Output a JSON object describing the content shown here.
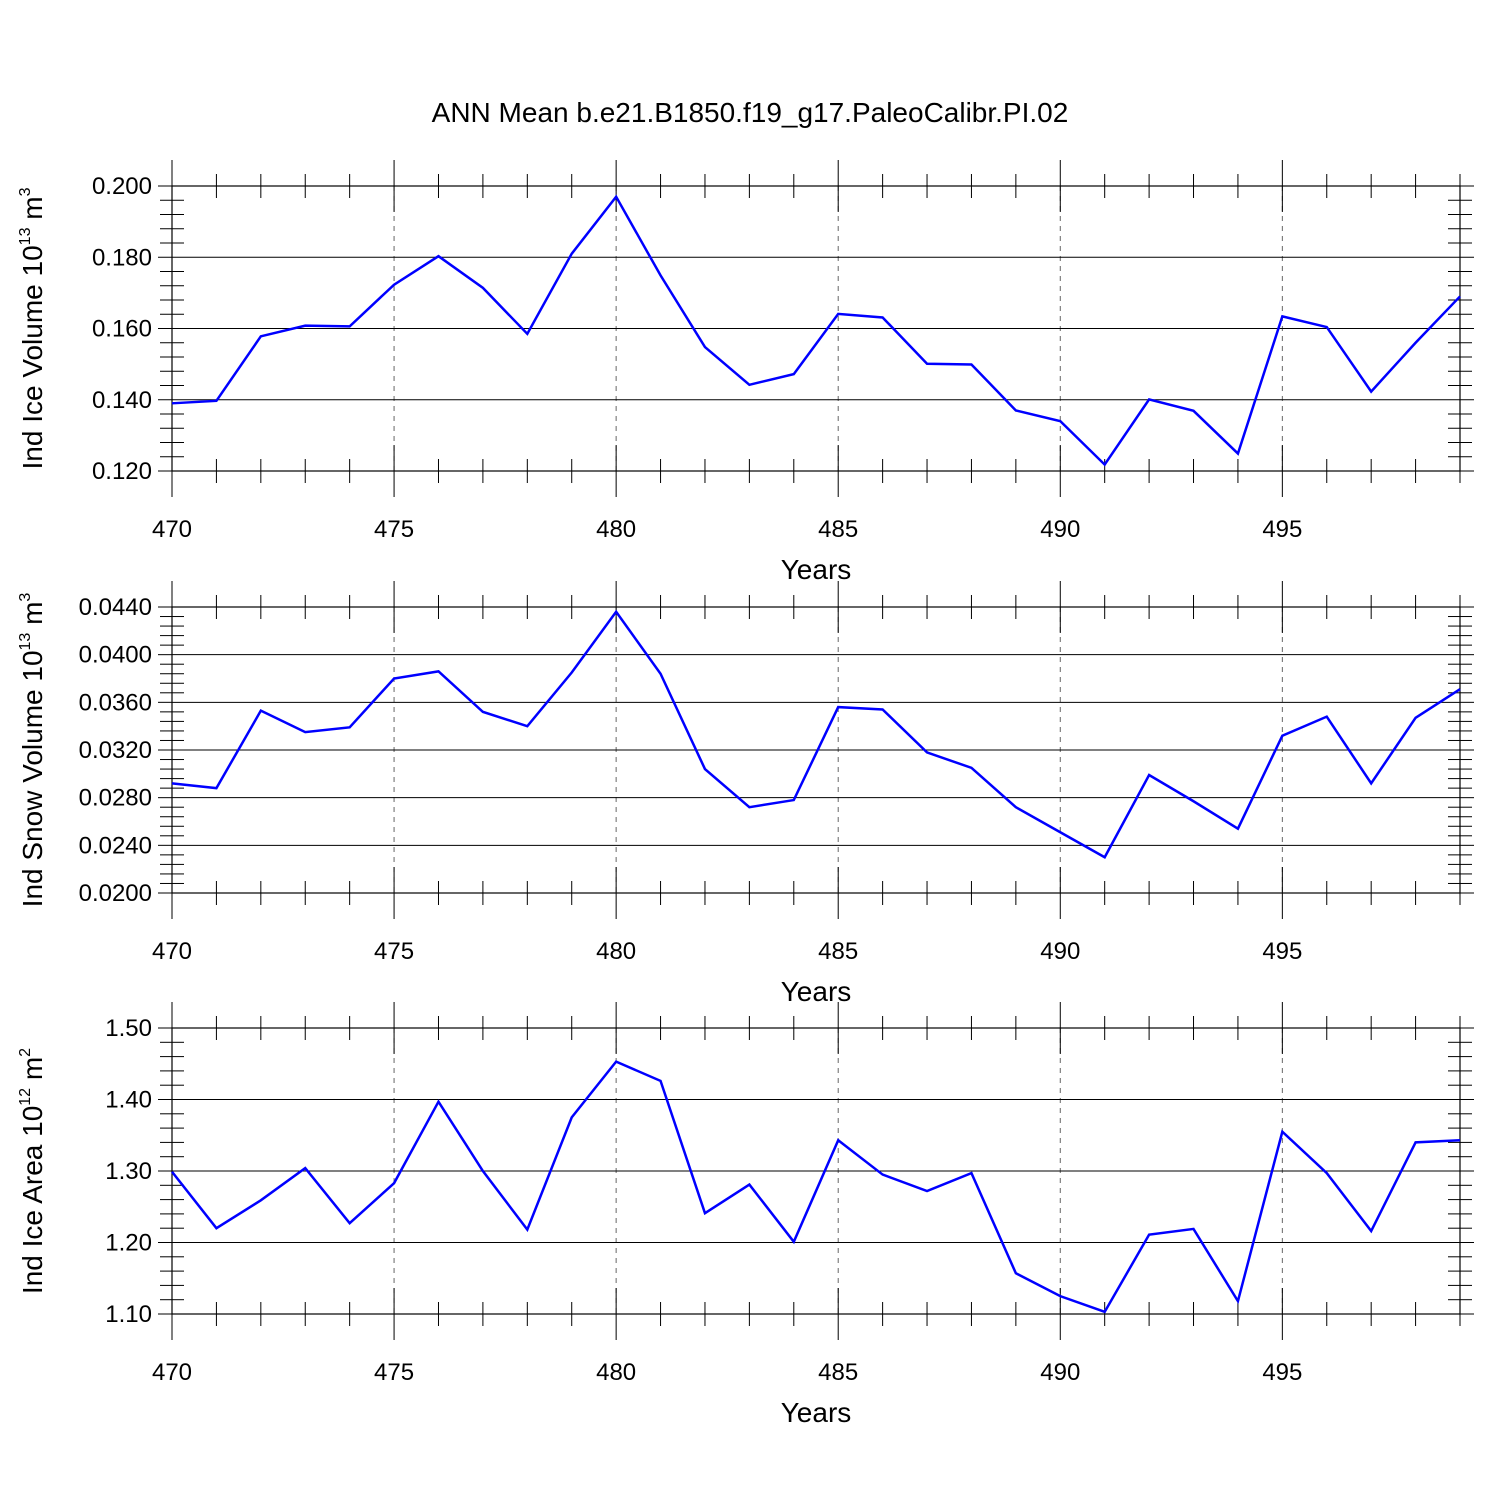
{
  "figure_title": "ANN Mean b.e21.B1850.f19_g17.PaleoCalibr.PI.02",
  "line_color": "#0000ff",
  "chart_data": [
    {
      "type": "line",
      "title": "ANN Mean b.e21.B1850.f19_g17.PaleoCalibr.PI.02",
      "xlabel": "Years",
      "ylabel": {
        "text": "Ind Ice Volume 10",
        "exponent": "13",
        "unit": "m",
        "unit_exponent": "3"
      },
      "xlim": [
        470,
        499
      ],
      "ylim": [
        0.12,
        0.2
      ],
      "xticks": [
        "470",
        "475",
        "480",
        "485",
        "490",
        "495"
      ],
      "yticks": [
        "0.120",
        "0.140",
        "0.160",
        "0.180",
        "0.200"
      ],
      "grid": "dashed vertical at x major ticks",
      "x": [
        470,
        471,
        472,
        473,
        474,
        475,
        476,
        477,
        478,
        479,
        480,
        481,
        482,
        483,
        484,
        485,
        486,
        487,
        488,
        489,
        490,
        491,
        492,
        493,
        494,
        495,
        496,
        497,
        498,
        499
      ],
      "series": [
        {
          "values": [
            0.139,
            0.1397,
            0.1578,
            0.1608,
            0.1606,
            0.1723,
            0.1803,
            0.1714,
            0.1585,
            0.181,
            0.197,
            0.1749,
            0.1548,
            0.1442,
            0.1472,
            0.1641,
            0.1631,
            0.1501,
            0.1499,
            0.137,
            0.134,
            0.1218,
            0.1401,
            0.1369,
            0.1249,
            0.1634,
            0.1604,
            0.1423,
            0.156,
            0.169
          ]
        }
      ]
    },
    {
      "type": "line",
      "xlabel": "Years",
      "ylabel": {
        "text": "Ind Snow Volume 10",
        "exponent": "13",
        "unit": "m",
        "unit_exponent": "3"
      },
      "xlim": [
        470,
        499
      ],
      "ylim": [
        0.02,
        0.044
      ],
      "xticks": [
        "470",
        "475",
        "480",
        "485",
        "490",
        "495"
      ],
      "yticks": [
        "0.0200",
        "0.0240",
        "0.0280",
        "0.0320",
        "0.0360",
        "0.0400",
        "0.0440"
      ],
      "grid": "dashed vertical at x major ticks",
      "x": [
        470,
        471,
        472,
        473,
        474,
        475,
        476,
        477,
        478,
        479,
        480,
        481,
        482,
        483,
        484,
        485,
        486,
        487,
        488,
        489,
        490,
        491,
        492,
        493,
        494,
        495,
        496,
        497,
        498,
        499
      ],
      "series": [
        {
          "values": [
            0.0292,
            0.0288,
            0.0353,
            0.0335,
            0.0339,
            0.038,
            0.0386,
            0.0352,
            0.034,
            0.0385,
            0.0436,
            0.0384,
            0.0304,
            0.0272,
            0.0278,
            0.0356,
            0.0354,
            0.0318,
            0.0305,
            0.0272,
            0.0251,
            0.023,
            0.0299,
            0.0277,
            0.0254,
            0.0332,
            0.0348,
            0.0292,
            0.0347,
            0.0371
          ]
        }
      ]
    },
    {
      "type": "line",
      "xlabel": "Years",
      "ylabel": {
        "text": "Ind Ice Area 10",
        "exponent": "12",
        "unit": "m",
        "unit_exponent": "2"
      },
      "xlim": [
        470,
        499
      ],
      "ylim": [
        1.1,
        1.5
      ],
      "xticks": [
        "470",
        "475",
        "480",
        "485",
        "490",
        "495"
      ],
      "yticks": [
        "1.10",
        "1.20",
        "1.30",
        "1.40",
        "1.50"
      ],
      "grid": "dashed vertical at x major ticks",
      "x": [
        470,
        471,
        472,
        473,
        474,
        475,
        476,
        477,
        478,
        479,
        480,
        481,
        482,
        483,
        484,
        485,
        486,
        487,
        488,
        489,
        490,
        491,
        492,
        493,
        494,
        495,
        496,
        497,
        498,
        499
      ],
      "series": [
        {
          "values": [
            1.299,
            1.22,
            1.259,
            1.304,
            1.227,
            1.283,
            1.397,
            1.3,
            1.218,
            1.375,
            1.453,
            1.426,
            1.241,
            1.281,
            1.201,
            1.343,
            1.295,
            1.272,
            1.297,
            1.157,
            1.125,
            1.103,
            1.211,
            1.219,
            1.118,
            1.355,
            1.297,
            1.216,
            1.34,
            1.343
          ]
        }
      ]
    }
  ]
}
